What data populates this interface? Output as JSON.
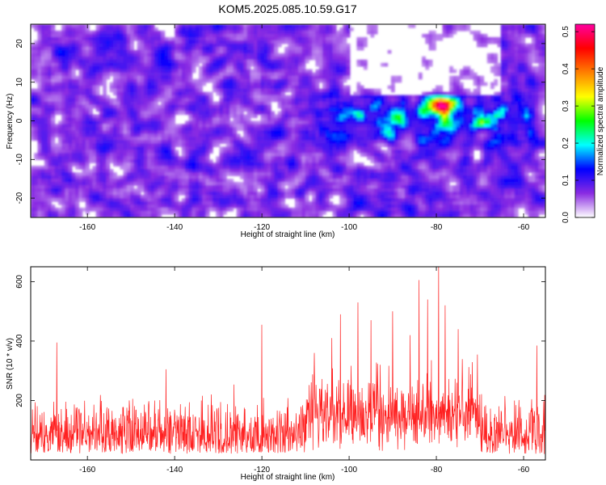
{
  "title": "KOM5.2025.085.10.59.G17",
  "chart_data": [
    {
      "type": "heatmap",
      "xlabel": "Height of straight line (km)",
      "ylabel": "Frequency (Hz)",
      "xlim": [
        -173,
        -55
      ],
      "ylim": [
        -25,
        25
      ],
      "xticks": [
        -160,
        -140,
        -120,
        -100,
        -80,
        -60
      ],
      "yticks": [
        -20,
        -10,
        0,
        10,
        20
      ],
      "colorbar": {
        "label": "Normalized spectral amplitude",
        "range": [
          0,
          0.52
        ],
        "ticks": [
          0.0,
          0.1,
          0.2,
          0.3,
          0.4,
          0.5
        ],
        "colors": [
          "#ffffff",
          "#8a2be2",
          "#0000ff",
          "#00ffff",
          "#00ff00",
          "#ffff00",
          "#ff8000",
          "#ff0000",
          "#ff00a0"
        ]
      },
      "features": {
        "background": "mottled low-amplitude (0.05–0.12) violet speckle across full range",
        "band": {
          "x_range": [
            -110,
            -56
          ],
          "freq_center": 0,
          "freq_width": 10,
          "typical_amplitude": 0.18
        },
        "peak": {
          "x": -79,
          "freq": 4,
          "amplitude": 0.52
        }
      }
    },
    {
      "type": "line",
      "color": "#ff2020",
      "xlabel": "Height of straight line (km)",
      "ylabel": "SNR (10 * v/v)",
      "xlim": [
        -173,
        -55
      ],
      "ylim": [
        0,
        650
      ],
      "xticks": [
        -160,
        -140,
        -120,
        -100,
        -80,
        -60
      ],
      "yticks": [
        200,
        400,
        600
      ],
      "features": {
        "baseline_mean": 120,
        "baseline_range": [
          20,
          230
        ],
        "enhanced_region_x": [
          -110,
          -70
        ],
        "spikes": [
          {
            "x": -167,
            "y": 395
          },
          {
            "x": -142,
            "y": 305
          },
          {
            "x": -120,
            "y": 455
          },
          {
            "x": -108,
            "y": 360
          },
          {
            "x": -104,
            "y": 410
          },
          {
            "x": -102,
            "y": 490
          },
          {
            "x": -98,
            "y": 530
          },
          {
            "x": -95,
            "y": 470
          },
          {
            "x": -90,
            "y": 500
          },
          {
            "x": -86,
            "y": 420
          },
          {
            "x": -84,
            "y": 605
          },
          {
            "x": -82,
            "y": 540
          },
          {
            "x": -79.5,
            "y": 650
          },
          {
            "x": -78,
            "y": 520
          },
          {
            "x": -75,
            "y": 440
          },
          {
            "x": -57,
            "y": 385
          }
        ]
      }
    }
  ]
}
